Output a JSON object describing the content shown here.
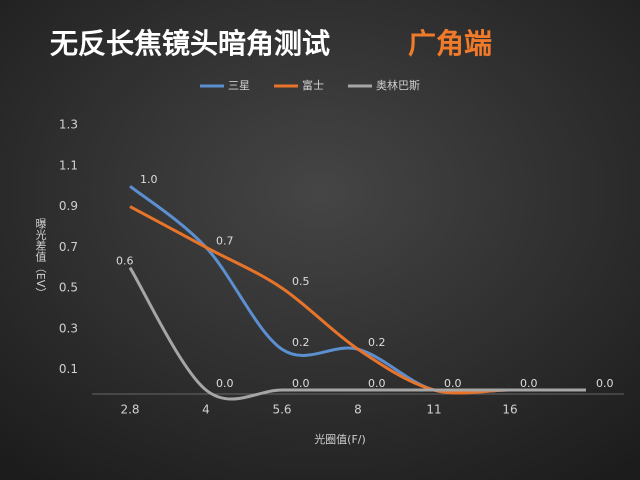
{
  "chart_data": {
    "type": "line",
    "title": "无反长焦镜头暗角测试",
    "subtitle": "广角端",
    "x_label": "光圈值(F/)",
    "y_label": "曝光差值（EV）",
    "categories": [
      "2.8",
      "4",
      "5.6",
      "8",
      "11",
      "16",
      null
    ],
    "series": [
      {
        "name": "三星",
        "color": "#5b8fd0",
        "values": [
          1.0,
          0.7,
          0.2,
          0.2,
          0.0,
          0.0,
          0.0
        ],
        "value_labels": [
          "1.0",
          "0.7",
          "0.2",
          "0.2",
          null,
          null,
          null
        ]
      },
      {
        "name": "富士",
        "color": "#e8742a",
        "values": [
          0.9,
          0.7,
          0.5,
          0.2,
          0.0,
          0.0,
          0.0
        ],
        "value_labels": [
          null,
          null,
          "0.5",
          null,
          null,
          null,
          null
        ]
      },
      {
        "name": "奥林巴斯",
        "color": "#a6a6a6",
        "values": [
          0.6,
          0.0,
          0.0,
          0.0,
          0.0,
          0.0,
          0.0
        ],
        "value_labels": [
          "0.6",
          "0.0",
          "0.0",
          "0.0",
          "0.0",
          "0.0",
          "0.0"
        ]
      }
    ],
    "ylim": [
      0,
      1.3
    ],
    "yticks": [
      0.1,
      0.3,
      0.5,
      0.7,
      0.9,
      1.1,
      1.3
    ],
    "legend": "top",
    "grid": false
  }
}
